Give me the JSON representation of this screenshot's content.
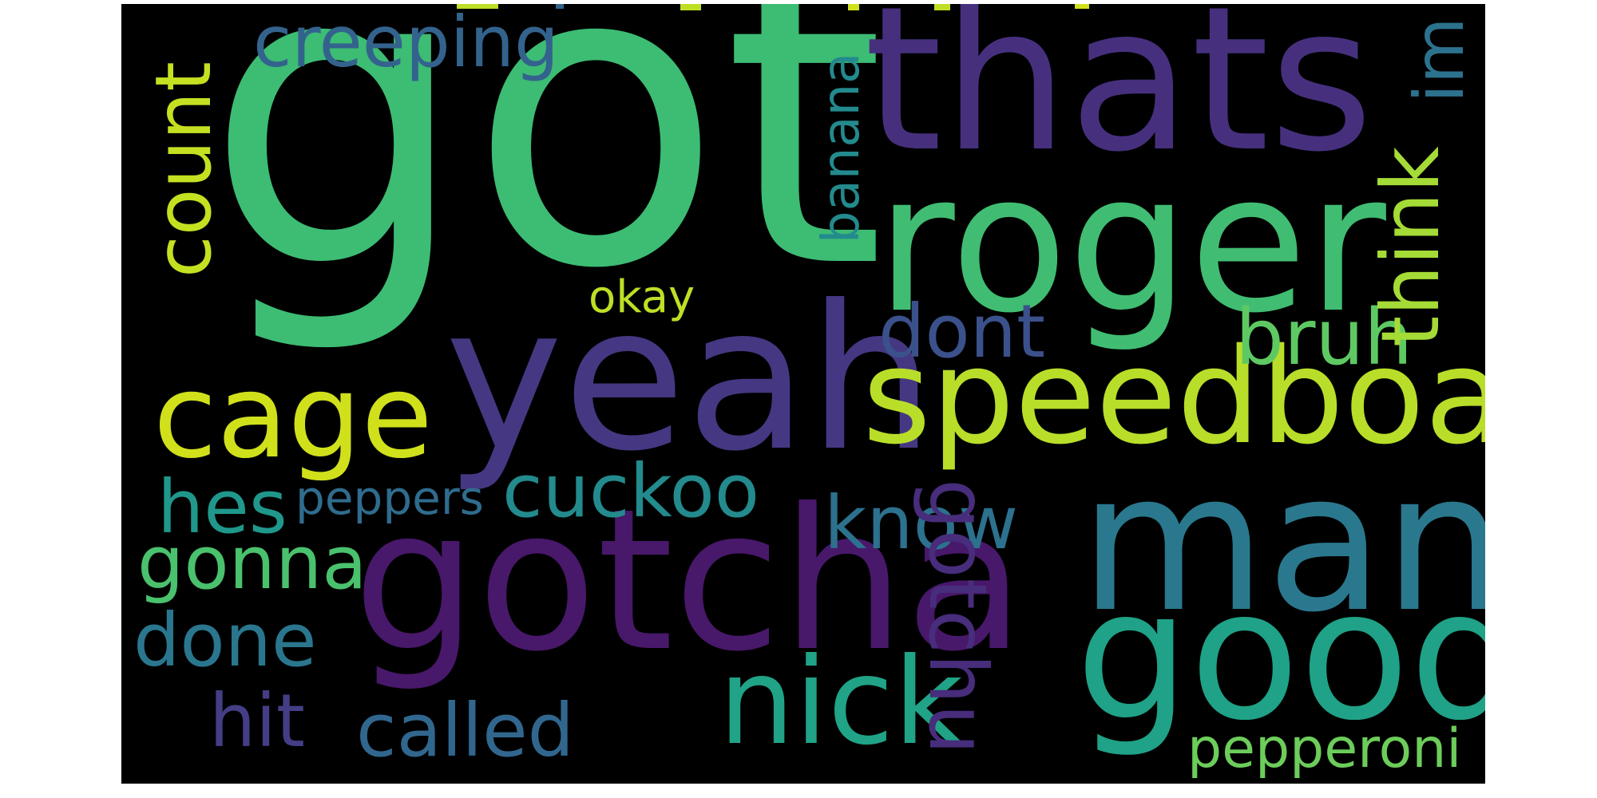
{
  "wordcloud": {
    "background": "#000000",
    "words": {
      "got": {
        "text": "got",
        "color": "#3dbc74"
      },
      "thats": {
        "text": "thats",
        "color": "#46307e"
      },
      "roger": {
        "text": "roger",
        "color": "#40bd72"
      },
      "yeah": {
        "text": "yeah",
        "color": "#453781"
      },
      "speedboat": {
        "text": "speedboat",
        "color": "#b8de29"
      },
      "gotcha": {
        "text": "gotcha",
        "color": "#48186a"
      },
      "man": {
        "text": "man",
        "color": "#2a788e"
      },
      "good": {
        "text": "good",
        "color": "#1fa287"
      },
      "cage": {
        "text": "cage",
        "color": "#d0e11c"
      },
      "nick": {
        "text": "nick",
        "color": "#20a386"
      },
      "creeping": {
        "text": "creeping",
        "color": "#33638d"
      },
      "count": {
        "text": "count",
        "color": "#c5e021"
      },
      "banana": {
        "text": "banana",
        "color": "#238a8d"
      },
      "im": {
        "text": "im",
        "color": "#2c728e"
      },
      "think": {
        "text": "think",
        "color": "#a5db36"
      },
      "dont": {
        "text": "dont",
        "color": "#3b518b"
      },
      "bruh": {
        "text": "bruh",
        "color": "#5ec962"
      },
      "okay": {
        "text": "okay",
        "color": "#bddf26"
      },
      "cuckoo": {
        "text": "cuckoo",
        "color": "#238a8d"
      },
      "hes": {
        "text": "hes",
        "color": "#1f988b"
      },
      "peppers": {
        "text": "peppers",
        "color": "#2f6c8e"
      },
      "know": {
        "text": "know",
        "color": "#2c718e"
      },
      "gotchu": {
        "text": "gotchu",
        "color": "#472d7b"
      },
      "gonna": {
        "text": "gonna",
        "color": "#4ac16d"
      },
      "done": {
        "text": "done",
        "color": "#2a768e"
      },
      "hit": {
        "text": "hit",
        "color": "#433e85"
      },
      "called": {
        "text": "called",
        "color": "#31678e"
      },
      "pepperoni": {
        "text": "pepperoni",
        "color": "#6ccd5a"
      }
    }
  }
}
